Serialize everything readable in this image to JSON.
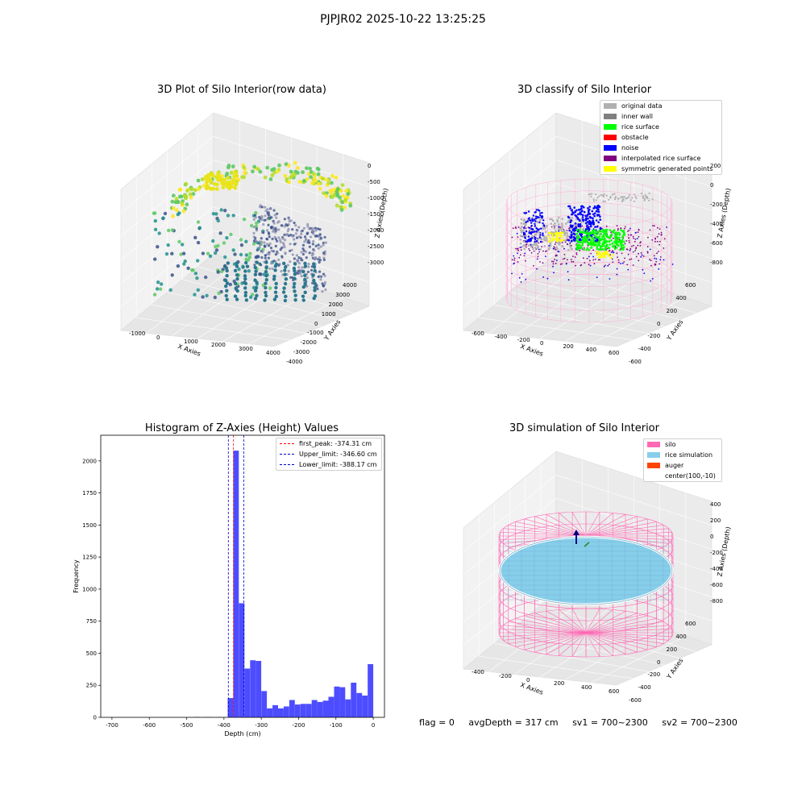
{
  "suptitle": "PJPJR02 2025-10-22 13:25:25",
  "chart_data": [
    {
      "type": "scatter",
      "title": "3D Plot of Silo Interior(row data)",
      "xlabel": "X Axies",
      "ylabel": "Y Axies",
      "zlabel": "Z Axies (Depth)",
      "x_ticks": [
        "-1000",
        "0",
        "1000",
        "2000",
        "3000",
        "4000"
      ],
      "y_ticks": [
        "-4000",
        "-3000",
        "-2000",
        "-1000",
        "0",
        "1000",
        "2000",
        "3000",
        "4000"
      ],
      "z_ticks": [
        "0",
        "-500",
        "-1000",
        "-1500",
        "-2000",
        "-2500",
        "-3000"
      ],
      "colormap": "viridis"
    },
    {
      "type": "scatter",
      "title": "3D classify of Silo Interior",
      "xlabel": "X Axies",
      "ylabel": "Y Axies",
      "zlabel": "Z Axies (Depth)",
      "x_ticks": [
        "-600",
        "-400",
        "-200",
        "0",
        "200",
        "400",
        "600"
      ],
      "y_ticks": [
        "-600",
        "-400",
        "-200",
        "0",
        "200",
        "400",
        "600"
      ],
      "z_ticks": [
        "200",
        "0",
        "-200",
        "-400",
        "-600",
        "-800"
      ],
      "legend": [
        {
          "label": "original data",
          "color": "#b0b0b0"
        },
        {
          "label": "inner wall",
          "color": "#808080"
        },
        {
          "label": "rice surface",
          "color": "#00ff00"
        },
        {
          "label": "obstacle",
          "color": "#ff0000"
        },
        {
          "label": "noise",
          "color": "#0000ff"
        },
        {
          "label": "interpolated rice surface",
          "color": "#800080"
        },
        {
          "label": "symmetric generated points",
          "color": "#ffff00"
        }
      ],
      "legend_position": "top-right"
    },
    {
      "type": "bar",
      "title": "Histogram of Z-Axies (Height) Values",
      "xlabel": "Depth (cm)",
      "ylabel": "Frequency",
      "xlim": [
        -730,
        30
      ],
      "ylim": [
        0,
        2200
      ],
      "x_ticks": [
        -700,
        -600,
        -500,
        -400,
        -300,
        -200,
        -100,
        0
      ],
      "y_ticks": [
        0,
        250,
        500,
        750,
        1000,
        1250,
        1500,
        1750,
        2000
      ],
      "bar_color": "#4d4dff",
      "bins": [
        {
          "x0": -480,
          "x1": -465,
          "count": 3
        },
        {
          "x0": -450,
          "x1": -435,
          "count": 2
        },
        {
          "x0": -420,
          "x1": -405,
          "count": 2
        },
        {
          "x0": -390,
          "x1": -375,
          "count": 150
        },
        {
          "x0": -375,
          "x1": -360,
          "count": 2080
        },
        {
          "x0": -360,
          "x1": -345,
          "count": 890
        },
        {
          "x0": -345,
          "x1": -330,
          "count": 380
        },
        {
          "x0": -330,
          "x1": -315,
          "count": 445
        },
        {
          "x0": -315,
          "x1": -300,
          "count": 440
        },
        {
          "x0": -300,
          "x1": -285,
          "count": 205
        },
        {
          "x0": -285,
          "x1": -270,
          "count": 70
        },
        {
          "x0": -270,
          "x1": -255,
          "count": 95
        },
        {
          "x0": -255,
          "x1": -240,
          "count": 70
        },
        {
          "x0": -240,
          "x1": -225,
          "count": 85
        },
        {
          "x0": -225,
          "x1": -210,
          "count": 135
        },
        {
          "x0": -210,
          "x1": -195,
          "count": 100
        },
        {
          "x0": -195,
          "x1": -180,
          "count": 105
        },
        {
          "x0": -180,
          "x1": -165,
          "count": 105
        },
        {
          "x0": -165,
          "x1": -150,
          "count": 135
        },
        {
          "x0": -150,
          "x1": -135,
          "count": 120
        },
        {
          "x0": -135,
          "x1": -120,
          "count": 130
        },
        {
          "x0": -120,
          "x1": -105,
          "count": 160
        },
        {
          "x0": -105,
          "x1": -90,
          "count": 240
        },
        {
          "x0": -90,
          "x1": -75,
          "count": 235
        },
        {
          "x0": -75,
          "x1": -60,
          "count": 140
        },
        {
          "x0": -60,
          "x1": -45,
          "count": 270
        },
        {
          "x0": -45,
          "x1": -30,
          "count": 190
        },
        {
          "x0": -30,
          "x1": -15,
          "count": 170
        },
        {
          "x0": -15,
          "x1": 0,
          "count": 415
        }
      ],
      "vlines": [
        {
          "label": "first_peak: -374.31 cm",
          "x": -374.31,
          "color": "#ff0000"
        },
        {
          "label": "Upper_limit: -346.60 cm",
          "x": -346.6,
          "color": "#0000cc"
        },
        {
          "label": "Lower_limit: -388.17 cm",
          "x": -388.17,
          "color": "#0000cc"
        }
      ],
      "legend_position": "top-right"
    },
    {
      "type": "surface",
      "title": "3D simulation of Silo Interior",
      "xlabel": "X Axies",
      "ylabel": "Y Axies",
      "zlabel": "Z Axies (Depth)",
      "x_ticks": [
        "-400",
        "-200",
        "0",
        "200",
        "400",
        "600"
      ],
      "y_ticks": [
        "-600",
        "-400",
        "-200",
        "0",
        "200",
        "400",
        "600"
      ],
      "z_ticks": [
        "400",
        "200",
        "0",
        "-200",
        "-400",
        "-600",
        "-800"
      ],
      "legend": [
        {
          "label": "silo",
          "color": "#ff69b4"
        },
        {
          "label": "rice simulation",
          "color": "#87ceeb"
        },
        {
          "label": "auger",
          "color": "#ff4500"
        },
        {
          "label": "center(100,-10)",
          "color": "#ffffff"
        }
      ],
      "legend_position": "top-right"
    }
  ],
  "footer": {
    "flag": "flag = 0",
    "avg_depth": "avgDepth = 317 cm",
    "sv1": "sv1 = 700~2300",
    "sv2": "sv2 = 700~2300"
  }
}
